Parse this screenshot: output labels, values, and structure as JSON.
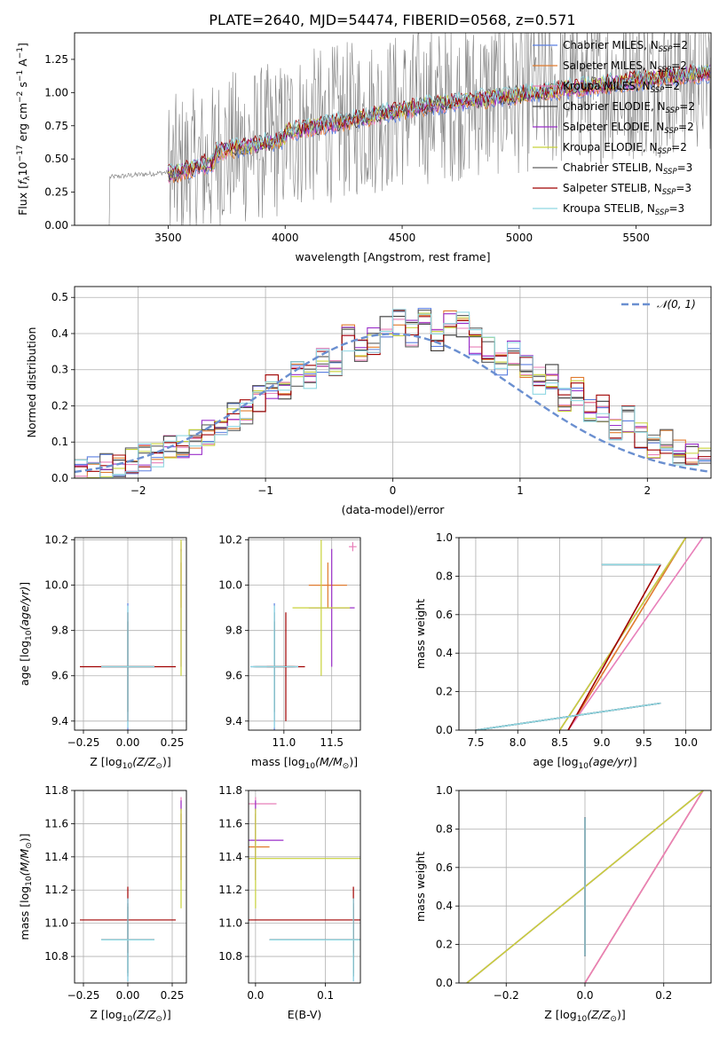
{
  "title": "PLATE=2640, MJD=54474, FIBERID=0568, z=0.571",
  "colors": {
    "Chabrier MILES": "#5b7fe0",
    "Salpeter MILES": "#e07b2f",
    "Kroupa MILES": "#e87fb9",
    "Chabrier ELODIE": "#3d3d3d",
    "Salpeter ELODIE": "#9b2fc9",
    "Kroupa ELODIE": "#c8d23a",
    "Chabrier STELIB": "#5f5f5f",
    "Salpeter STELIB": "#a00000",
    "Kroupa STELIB": "#8fd8e2",
    "gauss": "#6a8fd0",
    "data": "#808080"
  },
  "chart_data": [
    {
      "type": "line",
      "panel": "spectrum",
      "xlabel": "wavelength [Angstrom, rest frame]",
      "ylabel_main": "Flux [",
      "ylabel_italic": "f",
      "ylabel_sub": "λ",
      "ylabel_mid": "10",
      "ylabel_sup1": "−17",
      "ylabel_rest1": " erg cm",
      "ylabel_sup2": "−2",
      "ylabel_rest2": " s",
      "ylabel_sup3": "−1",
      "ylabel_rest3": " A",
      "ylabel_sup4": "−1",
      "ylabel_end": "]",
      "xlim": [
        3100,
        5820
      ],
      "ylim": [
        0,
        1.45
      ],
      "xticks": [
        "3500",
        "4000",
        "4500",
        "5000",
        "5500"
      ],
      "yticks": [
        "0.00",
        "0.25",
        "0.50",
        "0.75",
        "1.00",
        "1.25"
      ],
      "xtick_values": [
        3500,
        4000,
        4500,
        5000,
        5500
      ],
      "ytick_values": [
        0,
        0.25,
        0.5,
        0.75,
        1.0,
        1.25
      ],
      "data_start": 3230,
      "model_start": 3500,
      "legend_position": "upper right",
      "legend": [
        {
          "name": "Chabrier MILES, N",
          "sub": "SSP",
          "tail": "=2"
        },
        {
          "name": "Salpeter MILES, N",
          "sub": "SSP",
          "tail": "=2"
        },
        {
          "name": "Kroupa MILES, N",
          "sub": "SSP",
          "tail": "=2"
        },
        {
          "name": "Chabrier ELODIE, N",
          "sub": "SSP",
          "tail": "=2"
        },
        {
          "name": "Salpeter ELODIE, N",
          "sub": "SSP",
          "tail": "=2"
        },
        {
          "name": "Kroupa ELODIE, N",
          "sub": "SSP",
          "tail": "=2"
        },
        {
          "name": "Chabrier STELIB, N",
          "sub": "SSP",
          "tail": "=3"
        },
        {
          "name": "Salpeter STELIB, N",
          "sub": "SSP",
          "tail": "=3"
        },
        {
          "name": "Kroupa STELIB, N",
          "sub": "SSP",
          "tail": "=3"
        }
      ]
    },
    {
      "type": "line",
      "panel": "residuals",
      "xlabel": "(data-model)/error",
      "ylabel": "Normed distribution",
      "xlim": [
        -2.5,
        2.5
      ],
      "ylim": [
        0,
        0.53
      ],
      "xticks": [
        "−2",
        "−1",
        "0",
        "1",
        "2"
      ],
      "yticks": [
        "0.0",
        "0.1",
        "0.2",
        "0.3",
        "0.4",
        "0.5"
      ],
      "xtick_values": [
        -2,
        -1,
        0,
        1,
        2
      ],
      "ytick_values": [
        0,
        0.1,
        0.2,
        0.3,
        0.4,
        0.5
      ],
      "grid": true,
      "bins_start": -2.5,
      "bin_width": 0.1,
      "legend_label": "𝒩(0, 1)",
      "hist_base": [
        0.02,
        0.03,
        0.04,
        0.03,
        0.05,
        0.06,
        0.06,
        0.08,
        0.09,
        0.1,
        0.12,
        0.14,
        0.17,
        0.19,
        0.22,
        0.26,
        0.23,
        0.29,
        0.28,
        0.33,
        0.3,
        0.39,
        0.36,
        0.38,
        0.41,
        0.43,
        0.4,
        0.44,
        0.39,
        0.43,
        0.42,
        0.38,
        0.36,
        0.32,
        0.35,
        0.3,
        0.27,
        0.28,
        0.22,
        0.24,
        0.18,
        0.19,
        0.14,
        0.16,
        0.12,
        0.09,
        0.1,
        0.07,
        0.06,
        0.05
      ],
      "series": [
        {
          "name": "Chabrier MILES"
        },
        {
          "name": "Salpeter MILES"
        },
        {
          "name": "Kroupa MILES"
        },
        {
          "name": "Chabrier ELODIE"
        },
        {
          "name": "Salpeter ELODIE"
        },
        {
          "name": "Kroupa ELODIE"
        },
        {
          "name": "Chabrier STELIB"
        },
        {
          "name": "Salpeter STELIB"
        },
        {
          "name": "Kroupa STELIB"
        }
      ]
    },
    {
      "type": "scatter",
      "panel": "age-vs-Z",
      "xlabel_main": "Z [log",
      "xlabel_sub": "10",
      "xlabel_italic": "(Z/Z",
      "xlabel_end": ")]",
      "ylabel_main": "age  [log",
      "ylabel_sub": "10",
      "ylabel_italic": "(age/yr)",
      "ylabel_end": "]",
      "xlim": [
        -0.3,
        0.33
      ],
      "ylim": [
        9.36,
        10.21
      ],
      "xticks": [
        "−0.25",
        "0.00",
        "0.25"
      ],
      "yticks": [
        "9.4",
        "9.6",
        "9.8",
        "10.0",
        "10.2"
      ],
      "xtick_values": [
        -0.25,
        0,
        0.25
      ],
      "ytick_values": [
        9.4,
        9.6,
        9.8,
        10.0,
        10.2
      ],
      "grid": true
    },
    {
      "type": "scatter",
      "panel": "age-vs-mass",
      "xlabel_main": "mass [log",
      "xlabel_sub": "10",
      "xlabel_italic": "(M/M",
      "xlabel_end": ")]",
      "xlim": [
        10.63,
        11.8
      ],
      "ylim": [
        9.36,
        10.21
      ],
      "xticks": [
        "11.0",
        "11.5"
      ],
      "yticks": [
        "9.4",
        "9.6",
        "9.8",
        "10.0",
        "10.2"
      ],
      "xtick_values": [
        11.0,
        11.5
      ],
      "ytick_values": [
        9.4,
        9.6,
        9.8,
        10.0,
        10.2
      ],
      "grid": true
    },
    {
      "type": "line",
      "panel": "mass-weight-vs-age",
      "xlabel_main": "age  [log",
      "xlabel_sub": "10",
      "xlabel_italic": "(age/yr)",
      "xlabel_end": "]",
      "ylabel": "mass weight",
      "xlim": [
        7.3,
        10.3
      ],
      "ylim": [
        0,
        1
      ],
      "xticks": [
        "7.5",
        "8.0",
        "8.5",
        "9.0",
        "9.5",
        "10.0"
      ],
      "yticks": [
        "0.0",
        "0.2",
        "0.4",
        "0.6",
        "0.8",
        "1.0"
      ],
      "xtick_values": [
        7.5,
        8.0,
        8.5,
        9.0,
        9.5,
        10.0
      ],
      "ytick_values": [
        0,
        0.2,
        0.4,
        0.6,
        0.8,
        1.0
      ],
      "grid": true
    },
    {
      "type": "scatter",
      "panel": "mass-vs-Z",
      "xlabel_main": "Z [log",
      "xlabel_sub": "10",
      "xlabel_italic": "(Z/Z",
      "xlabel_end": ")]",
      "ylabel_main": "mass [log",
      "ylabel_sub": "10",
      "ylabel_italic": "(M/M",
      "ylabel_end": ")]",
      "xlim": [
        -0.3,
        0.33
      ],
      "ylim": [
        10.64,
        11.8
      ],
      "xticks": [
        "−0.25",
        "0.00",
        "0.25"
      ],
      "yticks": [
        "10.8",
        "11.0",
        "11.2",
        "11.4",
        "11.6",
        "11.8"
      ],
      "xtick_values": [
        -0.25,
        0,
        0.25
      ],
      "ytick_values": [
        10.8,
        11.0,
        11.2,
        11.4,
        11.6,
        11.8
      ],
      "grid": true
    },
    {
      "type": "scatter",
      "panel": "mass-vs-EBV",
      "xlabel": "E(B-V)",
      "xlim": [
        -0.01,
        0.15
      ],
      "ylim": [
        10.64,
        11.8
      ],
      "xticks": [
        "0.0",
        "0.1"
      ],
      "yticks": [
        "10.8",
        "11.0",
        "11.2",
        "11.4",
        "11.6",
        "11.8"
      ],
      "xtick_values": [
        0,
        0.1
      ],
      "ytick_values": [
        10.8,
        11.0,
        11.2,
        11.4,
        11.6,
        11.8
      ],
      "grid": true
    },
    {
      "type": "line",
      "panel": "mass-weight-vs-Z",
      "xlabel_main": "Z [log",
      "xlabel_sub": "10",
      "xlabel_italic": "(Z/Z",
      "xlabel_end": ")]",
      "ylabel": "mass weight",
      "xlim": [
        -0.32,
        0.32
      ],
      "ylim": [
        0,
        1
      ],
      "xticks": [
        "−0.2",
        "0.0",
        "0.2"
      ],
      "yticks": [
        "0.0",
        "0.2",
        "0.4",
        "0.6",
        "0.8",
        "1.0"
      ],
      "xtick_values": [
        -0.2,
        0,
        0.2
      ],
      "ytick_values": [
        0,
        0.2,
        0.4,
        0.6,
        0.8,
        1.0
      ],
      "grid": true
    }
  ],
  "fits": [
    {
      "name": "Chabrier MILES",
      "Z": 0.0,
      "Zerr": 0.15,
      "age": 9.64,
      "ageErr": 0.28,
      "mass": 10.9,
      "massErr": 0.25,
      "ebv": 0.14,
      "ebvErr": 0.12,
      "ssp": [
        [
          7.5,
          9.7,
          0.0,
          0.14
        ],
        [
          9.0,
          9.7,
          0.86,
          0.86
        ]
      ],
      "zw": [
        [
          0.0,
          0.0,
          0.14,
          0.86
        ]
      ]
    },
    {
      "name": "Salpeter MILES",
      "Z": 0.3,
      "Zerr": 0.0,
      "age": 10.0,
      "ageErr": 0.1,
      "mass": 11.46,
      "massErr": 0.2,
      "ebv": 0.0,
      "ebvErr": 0.02,
      "ssp": [
        [
          8.6,
          10.0,
          0.0,
          1.0
        ]
      ],
      "zw": [
        [
          0.0,
          0.3,
          0.0,
          1.0
        ]
      ]
    },
    {
      "name": "Kroupa MILES",
      "Z": 0.3,
      "Zerr": 0.0,
      "age": 10.17,
      "ageErr": 0.02,
      "mass": 11.72,
      "massErr": 0.04,
      "ebv": 0.0,
      "ebvErr": 0.03,
      "ssp": [
        [
          8.6,
          10.2,
          0.0,
          1.0
        ]
      ],
      "zw": [
        [
          0.0,
          0.3,
          0.0,
          1.0
        ]
      ]
    },
    {
      "name": "Chabrier ELODIE",
      "Z": 0.0,
      "Zerr": 0.15,
      "age": 9.64,
      "ageErr": 0.2,
      "mass": 10.9,
      "massErr": 0.22,
      "ebv": 0.14,
      "ebvErr": 0.12,
      "ssp": [
        [
          7.5,
          9.7,
          0.0,
          0.14
        ],
        [
          9.0,
          9.7,
          0.86,
          0.86
        ]
      ],
      "zw": [
        [
          0.0,
          0.0,
          0.14,
          0.86
        ]
      ]
    },
    {
      "name": "Salpeter ELODIE",
      "Z": 0.3,
      "Zerr": 0.0,
      "age": 9.9,
      "ageErr": 0.26,
      "mass": 11.5,
      "massErr": 0.24,
      "ebv": 0.0,
      "ebvErr": 0.04,
      "ssp": [
        [
          8.5,
          10.0,
          0.0,
          1.0
        ]
      ],
      "zw": [
        [
          -0.3,
          0.3,
          0.0,
          1.0
        ]
      ]
    },
    {
      "name": "Kroupa ELODIE",
      "Z": 0.3,
      "Zerr": 0.0,
      "age": 9.9,
      "ageErr": 0.3,
      "mass": 11.39,
      "massErr": 0.3,
      "ebv": 0.0,
      "ebvErr": 0.3,
      "ssp": [
        [
          8.5,
          10.0,
          0.0,
          1.0
        ]
      ],
      "zw": [
        [
          -0.3,
          0.3,
          0.0,
          1.0
        ]
      ]
    },
    {
      "name": "Chabrier STELIB",
      "Z": 0.0,
      "Zerr": 0.15,
      "age": 9.64,
      "ageErr": 0.24,
      "mass": 10.9,
      "massErr": 0.2,
      "ebv": 0.14,
      "ebvErr": 0.12,
      "ssp": [
        [
          7.5,
          9.7,
          0.0,
          0.14
        ],
        [
          9.0,
          9.7,
          0.86,
          0.86
        ]
      ],
      "zw": [
        [
          0.0,
          0.0,
          0.14,
          0.86
        ]
      ]
    },
    {
      "name": "Salpeter STELIB",
      "Z": 0.0,
      "Zerr": 0.27,
      "age": 9.64,
      "ageErr": 0.24,
      "mass": 11.02,
      "massErr": 0.2,
      "ebv": 0.14,
      "ebvErr": 0.16,
      "ssp": [
        [
          8.6,
          9.7,
          0.0,
          0.86
        ]
      ],
      "zw": [
        [
          0.0,
          0.0,
          0.14,
          0.86
        ]
      ]
    },
    {
      "name": "Kroupa STELIB",
      "Z": 0.0,
      "Zerr": 0.15,
      "age": 9.64,
      "ageErr": 0.27,
      "mass": 10.9,
      "massErr": 0.25,
      "ebv": 0.14,
      "ebvErr": 0.12,
      "ssp": [
        [
          7.5,
          9.7,
          0.0,
          0.14
        ],
        [
          9.0,
          9.7,
          0.86,
          0.86
        ]
      ],
      "zw": [
        [
          0.0,
          0.0,
          0.14,
          0.86
        ]
      ]
    }
  ]
}
